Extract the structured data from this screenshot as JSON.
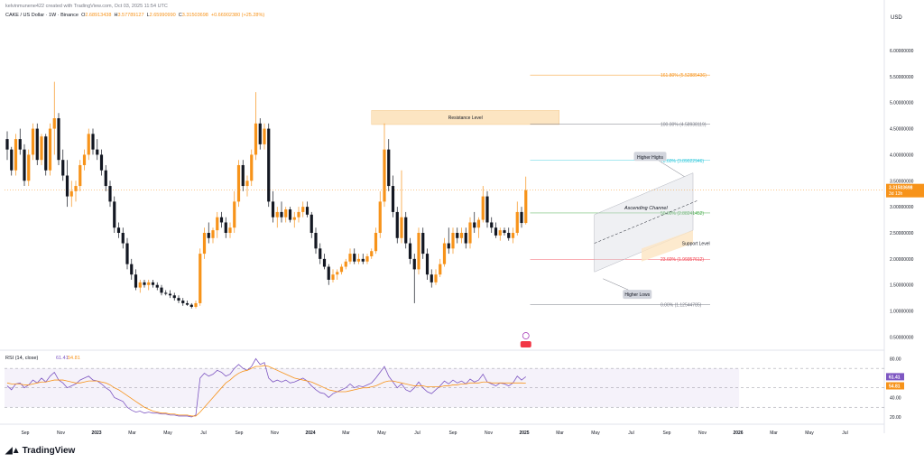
{
  "header": {
    "created_by": "kelvinmunene422 created with TradingView.com, Oct 03, 2025 11:54 UTC",
    "symbol": "CAKE / US Dollar · 1W · Binance",
    "open_label": "O",
    "open": "2.68913438",
    "high_label": "H",
    "high": "3.57789127",
    "low_label": "L",
    "low": "2.65990990",
    "close_label": "C",
    "close": "3.31503698",
    "change": "+0.66902380 (+25.28%)"
  },
  "currency_label": "USD",
  "price_badge": {
    "value": "3.31503698",
    "sub": "3d 13h"
  },
  "rsi_badges": {
    "rsi": "61.41",
    "ma": "54.81"
  },
  "brand": "TradingView",
  "chart_data": [
    {
      "type": "candlestick",
      "title": "CAKE / US Dollar · 1W · Binance",
      "y_scale": "linear",
      "ylim": [
        0.3,
        6.45
      ],
      "y_ticks": [
        "6.00000000",
        "5.50000000",
        "5.00000000",
        "4.50000000",
        "4.00000000",
        "3.50000000",
        "3.00000000",
        "2.50000000",
        "2.00000000",
        "1.50000000",
        "1.00000000",
        "0.50000000"
      ],
      "x_ticks": [
        "Sep",
        "Nov",
        "2023",
        "Mar",
        "May",
        "Jul",
        "Sep",
        "Nov",
        "2024",
        "Mar",
        "May",
        "Jul",
        "Sep",
        "Nov",
        "2025",
        "Mar",
        "May",
        "Jul",
        "Sep",
        "Nov",
        "2026",
        "Mar",
        "May",
        "Jul"
      ],
      "x_ticks_bold": [
        "2023",
        "2024",
        "2025",
        "2026"
      ],
      "candles_ohlc": [
        [
          4.3,
          4.45,
          3.9,
          4.1
        ],
        [
          4.1,
          4.15,
          3.6,
          3.7
        ],
        [
          3.7,
          4.4,
          3.6,
          4.3
        ],
        [
          4.3,
          4.5,
          4.0,
          4.1
        ],
        [
          4.1,
          4.2,
          3.4,
          3.5
        ],
        [
          3.5,
          4.1,
          3.4,
          4.0
        ],
        [
          4.0,
          4.6,
          3.9,
          4.5
        ],
        [
          4.5,
          4.6,
          3.8,
          3.9
        ],
        [
          3.9,
          4.4,
          3.8,
          4.35
        ],
        [
          4.35,
          4.4,
          3.6,
          3.7
        ],
        [
          3.7,
          4.6,
          3.6,
          4.5
        ],
        [
          4.5,
          5.4,
          4.0,
          4.7
        ],
        [
          4.7,
          4.8,
          3.8,
          3.9
        ],
        [
          3.9,
          4.1,
          3.5,
          3.6
        ],
        [
          3.6,
          3.9,
          3.0,
          3.2
        ],
        [
          3.2,
          3.5,
          3.0,
          3.3
        ],
        [
          3.3,
          3.5,
          3.1,
          3.4
        ],
        [
          3.4,
          3.9,
          3.3,
          3.8
        ],
        [
          3.8,
          4.1,
          3.7,
          4.0
        ],
        [
          4.0,
          4.5,
          3.9,
          4.4
        ],
        [
          4.4,
          4.5,
          4.0,
          4.1
        ],
        [
          4.1,
          4.3,
          3.9,
          4.0
        ],
        [
          4.0,
          4.1,
          3.6,
          3.7
        ],
        [
          3.7,
          3.8,
          3.3,
          3.4
        ],
        [
          3.4,
          3.5,
          3.0,
          3.1
        ],
        [
          3.1,
          3.2,
          2.5,
          2.6
        ],
        [
          2.6,
          2.7,
          2.4,
          2.5
        ],
        [
          2.5,
          2.6,
          2.2,
          2.3
        ],
        [
          2.3,
          2.4,
          1.8,
          1.9
        ],
        [
          1.9,
          2.0,
          1.6,
          1.7
        ],
        [
          1.7,
          1.8,
          1.4,
          1.45
        ],
        [
          1.45,
          1.6,
          1.35,
          1.55
        ],
        [
          1.55,
          1.6,
          1.45,
          1.5
        ],
        [
          1.5,
          1.6,
          1.4,
          1.55
        ],
        [
          1.55,
          1.6,
          1.45,
          1.5
        ],
        [
          1.5,
          1.55,
          1.4,
          1.45
        ],
        [
          1.45,
          1.5,
          1.3,
          1.35
        ],
        [
          1.35,
          1.4,
          1.3,
          1.33
        ],
        [
          1.33,
          1.4,
          1.25,
          1.3
        ],
        [
          1.3,
          1.35,
          1.2,
          1.25
        ],
        [
          1.25,
          1.3,
          1.15,
          1.2
        ],
        [
          1.2,
          1.25,
          1.1,
          1.15
        ],
        [
          1.15,
          1.2,
          1.1,
          1.12
        ],
        [
          1.12,
          1.15,
          1.05,
          1.08
        ],
        [
          1.08,
          1.2,
          1.05,
          1.15
        ],
        [
          1.15,
          2.2,
          1.1,
          2.1
        ],
        [
          2.1,
          2.6,
          2.0,
          2.5
        ],
        [
          2.5,
          2.7,
          2.3,
          2.4
        ],
        [
          2.4,
          2.6,
          2.3,
          2.55
        ],
        [
          2.55,
          2.9,
          2.4,
          2.8
        ],
        [
          2.8,
          2.9,
          2.6,
          2.7
        ],
        [
          2.7,
          2.8,
          2.4,
          2.5
        ],
        [
          2.5,
          2.7,
          2.4,
          2.6
        ],
        [
          2.6,
          3.3,
          2.5,
          3.1
        ],
        [
          3.1,
          3.9,
          3.0,
          3.8
        ],
        [
          3.8,
          3.9,
          3.3,
          3.4
        ],
        [
          3.4,
          3.6,
          3.2,
          3.5
        ],
        [
          3.5,
          4.1,
          3.4,
          4.0
        ],
        [
          4.0,
          5.2,
          3.9,
          4.6
        ],
        [
          4.6,
          4.7,
          4.1,
          4.2
        ],
        [
          4.2,
          4.6,
          4.1,
          4.5
        ],
        [
          4.5,
          4.6,
          3.0,
          3.1
        ],
        [
          3.1,
          3.3,
          2.7,
          2.8
        ],
        [
          2.8,
          3.0,
          2.6,
          2.9
        ],
        [
          2.9,
          3.1,
          2.7,
          2.8
        ],
        [
          2.8,
          3.0,
          2.7,
          2.95
        ],
        [
          2.95,
          3.0,
          2.7,
          2.75
        ],
        [
          2.75,
          2.9,
          2.6,
          2.8
        ],
        [
          2.8,
          3.0,
          2.7,
          2.9
        ],
        [
          2.9,
          3.1,
          2.8,
          3.0
        ],
        [
          3.0,
          3.1,
          2.8,
          2.85
        ],
        [
          2.85,
          2.9,
          2.4,
          2.5
        ],
        [
          2.5,
          2.6,
          2.1,
          2.2
        ],
        [
          2.2,
          2.3,
          1.9,
          2.0
        ],
        [
          2.0,
          2.1,
          1.8,
          1.85
        ],
        [
          1.85,
          1.9,
          1.5,
          1.6
        ],
        [
          1.6,
          1.8,
          1.55,
          1.7
        ],
        [
          1.7,
          1.8,
          1.6,
          1.75
        ],
        [
          1.75,
          1.9,
          1.7,
          1.85
        ],
        [
          1.85,
          2.0,
          1.8,
          1.95
        ],
        [
          1.95,
          2.2,
          1.9,
          2.1
        ],
        [
          2.1,
          2.2,
          1.9,
          1.95
        ],
        [
          1.95,
          2.1,
          1.9,
          2.0
        ],
        [
          2.0,
          2.1,
          1.9,
          1.95
        ],
        [
          1.95,
          2.1,
          1.9,
          2.05
        ],
        [
          2.05,
          2.2,
          2.0,
          2.15
        ],
        [
          2.15,
          2.6,
          2.1,
          2.5
        ],
        [
          2.5,
          3.3,
          2.4,
          3.1
        ],
        [
          3.1,
          4.6,
          3.0,
          4.1
        ],
        [
          4.1,
          4.3,
          3.3,
          3.4
        ],
        [
          3.4,
          3.6,
          2.8,
          2.9
        ],
        [
          2.9,
          3.0,
          2.3,
          2.4
        ],
        [
          2.4,
          3.7,
          2.3,
          2.8
        ],
        [
          2.8,
          2.9,
          2.2,
          2.3
        ],
        [
          2.3,
          2.4,
          1.9,
          2.0
        ],
        [
          2.0,
          2.1,
          1.15,
          1.8
        ],
        [
          1.8,
          2.6,
          1.7,
          2.5
        ],
        [
          2.5,
          2.6,
          2.0,
          2.1
        ],
        [
          2.1,
          2.2,
          1.6,
          1.7
        ],
        [
          1.7,
          1.8,
          1.45,
          1.55
        ],
        [
          1.55,
          1.8,
          1.5,
          1.7
        ],
        [
          1.7,
          2.0,
          1.65,
          1.9
        ],
        [
          1.9,
          2.4,
          1.85,
          2.3
        ],
        [
          2.3,
          2.6,
          2.1,
          2.2
        ],
        [
          2.2,
          2.6,
          2.1,
          2.5
        ],
        [
          2.5,
          2.6,
          2.3,
          2.4
        ],
        [
          2.4,
          2.6,
          2.3,
          2.5
        ],
        [
          2.5,
          2.6,
          2.2,
          2.3
        ],
        [
          2.3,
          2.8,
          2.2,
          2.7
        ],
        [
          2.7,
          2.9,
          2.5,
          2.6
        ],
        [
          2.6,
          2.8,
          2.4,
          2.75
        ],
        [
          2.75,
          3.4,
          2.7,
          3.2
        ],
        [
          3.2,
          3.3,
          2.6,
          2.7
        ],
        [
          2.7,
          2.8,
          2.5,
          2.6
        ],
        [
          2.6,
          2.7,
          2.4,
          2.45
        ],
        [
          2.45,
          2.6,
          2.35,
          2.55
        ],
        [
          2.55,
          2.6,
          2.45,
          2.5
        ],
        [
          2.5,
          2.6,
          2.35,
          2.4
        ],
        [
          2.4,
          2.6,
          2.3,
          2.5
        ],
        [
          2.5,
          3.1,
          2.45,
          2.9
        ],
        [
          2.9,
          3.0,
          2.6,
          2.69
        ],
        [
          2.69,
          3.58,
          2.66,
          3.32
        ]
      ],
      "fib_levels": [
        {
          "label": "161.80% (5.52885436)",
          "value": 5.52885436,
          "color": "#f7931a"
        },
        {
          "label": "100.00% (4.58938119)",
          "value": 4.58938119,
          "color": "#787b86"
        },
        {
          "label": "78.60% (3.89022946)",
          "value": 3.89022946,
          "color": "#26c6da"
        },
        {
          "label": "50.00% (2.88241452)",
          "value": 2.88241452,
          "color": "#4caf50"
        },
        {
          "label": "23.60% (1.99357612)",
          "value": 1.99357612,
          "color": "#f23645"
        },
        {
          "label": "0.00% (1.12544785)",
          "value": 1.12544785,
          "color": "#787b86"
        }
      ],
      "annotations": {
        "resistance": "Resistance Level",
        "support": "Support Level",
        "channel": "Ascending Channel",
        "higher_highs": "Higher Highs",
        "higher_lows": "Higher Lows"
      }
    },
    {
      "type": "line",
      "title": "RSI (14, close)",
      "rsi_value": "61.41",
      "ma_value": "54.81",
      "ylim": [
        20,
        85
      ],
      "y_ticks": [
        "80.00",
        "40.00",
        "20.00"
      ],
      "band": [
        30,
        70
      ],
      "series": [
        {
          "name": "RSI",
          "color": "#7e57c2",
          "values": [
            52,
            48,
            54,
            55,
            50,
            53,
            58,
            55,
            60,
            56,
            62,
            66,
            58,
            55,
            50,
            52,
            54,
            58,
            60,
            62,
            58,
            57,
            54,
            50,
            47,
            40,
            38,
            36,
            30,
            27,
            25,
            26,
            24,
            25,
            24,
            24,
            23,
            23,
            22,
            22,
            21,
            21,
            21,
            20,
            22,
            60,
            65,
            62,
            64,
            68,
            66,
            62,
            64,
            70,
            74,
            70,
            68,
            72,
            80,
            74,
            76,
            60,
            56,
            58,
            56,
            58,
            55,
            56,
            58,
            60,
            57,
            52,
            48,
            45,
            44,
            40,
            44,
            46,
            48,
            50,
            54,
            50,
            52,
            51,
            53,
            55,
            60,
            66,
            72,
            62,
            56,
            50,
            54,
            48,
            46,
            50,
            56,
            50,
            46,
            44,
            48,
            52,
            57,
            54,
            58,
            55,
            57,
            54,
            59,
            56,
            58,
            64,
            56,
            54,
            52,
            55,
            54,
            52,
            55,
            62,
            58,
            61.41
          ]
        },
        {
          "name": "RSI-based MA",
          "color": "#f7931a",
          "values": [
            55,
            54,
            54,
            54,
            53,
            53,
            54,
            55,
            56,
            56,
            57,
            58,
            58,
            58,
            57,
            56,
            55,
            55,
            56,
            57,
            57,
            57,
            56,
            55,
            53,
            50,
            48,
            45,
            42,
            39,
            36,
            33,
            30,
            28,
            26,
            25,
            24,
            24,
            23,
            23,
            22,
            22,
            22,
            21,
            21,
            25,
            30,
            35,
            40,
            45,
            50,
            55,
            58,
            62,
            65,
            67,
            68,
            70,
            72,
            72,
            73,
            72,
            70,
            68,
            66,
            64,
            62,
            60,
            59,
            58,
            57,
            56,
            54,
            52,
            50,
            48,
            47,
            46,
            46,
            46,
            47,
            48,
            49,
            50,
            50,
            51,
            52,
            54,
            56,
            57,
            57,
            56,
            55,
            54,
            53,
            52,
            52,
            52,
            51,
            51,
            51,
            51,
            52,
            52,
            53,
            53,
            54,
            54,
            55,
            55,
            55,
            56,
            56,
            55,
            55,
            55,
            55,
            55,
            55,
            55,
            55,
            54.81
          ]
        }
      ]
    }
  ]
}
